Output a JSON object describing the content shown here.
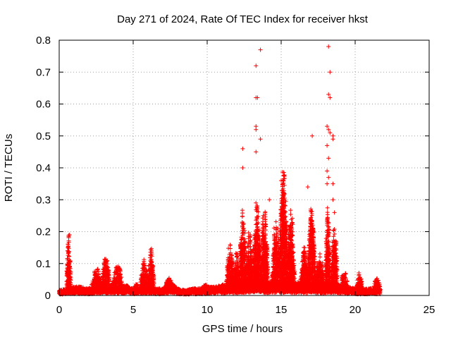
{
  "chart_data": {
    "type": "scatter",
    "title": "Day 271 of 2024, Rate Of TEC Index for receiver hkst",
    "xlabel": "GPS time / hours",
    "ylabel": "ROTI / TECUs",
    "xlim": [
      0,
      25
    ],
    "ylim": [
      0,
      0.8
    ],
    "x_ticks": [
      0,
      5,
      10,
      15,
      20,
      25
    ],
    "y_ticks": [
      0,
      0.1,
      0.2,
      0.3,
      0.4,
      0.5,
      0.6,
      0.7,
      0.8
    ],
    "x_tick_labels": [
      "0",
      "5",
      "10",
      "15",
      "20",
      "25"
    ],
    "y_tick_labels": [
      "0",
      "0.1",
      "0.2",
      "0.3",
      "0.4",
      "0.5",
      "0.6",
      "0.7",
      "0.8"
    ],
    "grid": true,
    "marker": "+",
    "series": [
      {
        "color": "#ff0000",
        "x_range": [
          0,
          21.7
        ],
        "baseline": [
          [
            0.0,
            0.015
          ],
          [
            0.5,
            0.02
          ],
          [
            1.0,
            0.025
          ],
          [
            1.5,
            0.025
          ],
          [
            2.0,
            0.02
          ],
          [
            2.5,
            0.03
          ],
          [
            3.0,
            0.035
          ],
          [
            3.5,
            0.03
          ],
          [
            4.0,
            0.025
          ],
          [
            4.5,
            0.03
          ],
          [
            5.0,
            0.02
          ],
          [
            5.5,
            0.025
          ],
          [
            6.0,
            0.03
          ],
          [
            6.5,
            0.02
          ],
          [
            7.0,
            0.02
          ],
          [
            7.5,
            0.04
          ],
          [
            8.0,
            0.02
          ],
          [
            8.5,
            0.015
          ],
          [
            9.0,
            0.02
          ],
          [
            9.5,
            0.02
          ],
          [
            10.0,
            0.025
          ],
          [
            10.5,
            0.025
          ],
          [
            11.0,
            0.03
          ],
          [
            11.5,
            0.04
          ],
          [
            12.0,
            0.035
          ],
          [
            12.5,
            0.04
          ],
          [
            13.0,
            0.05
          ],
          [
            13.5,
            0.045
          ],
          [
            14.0,
            0.04
          ],
          [
            14.5,
            0.04
          ],
          [
            15.0,
            0.045
          ],
          [
            15.5,
            0.035
          ],
          [
            16.0,
            0.04
          ],
          [
            16.5,
            0.035
          ],
          [
            17.0,
            0.04
          ],
          [
            17.5,
            0.035
          ],
          [
            18.0,
            0.035
          ],
          [
            18.5,
            0.04
          ],
          [
            19.0,
            0.03
          ],
          [
            19.5,
            0.025
          ],
          [
            20.0,
            0.02
          ],
          [
            20.5,
            0.02
          ],
          [
            21.0,
            0.02
          ],
          [
            21.7,
            0.02
          ]
        ],
        "bursts": [
          [
            0.5,
            0.8,
            0.19
          ],
          [
            2.2,
            2.9,
            0.08
          ],
          [
            2.9,
            3.4,
            0.12
          ],
          [
            3.6,
            4.3,
            0.09
          ],
          [
            5.0,
            5.4,
            0.04
          ],
          [
            5.5,
            6.0,
            0.11
          ],
          [
            6.0,
            6.4,
            0.15
          ],
          [
            7.2,
            7.7,
            0.06
          ],
          [
            9.6,
            10.2,
            0.03
          ],
          [
            11.3,
            11.8,
            0.18
          ],
          [
            11.8,
            12.2,
            0.14
          ],
          [
            12.2,
            12.6,
            0.28
          ],
          [
            12.6,
            13.1,
            0.2
          ],
          [
            13.1,
            13.6,
            0.32
          ],
          [
            13.6,
            14.1,
            0.27
          ],
          [
            14.4,
            14.9,
            0.25
          ],
          [
            14.9,
            15.4,
            0.4
          ],
          [
            15.4,
            15.9,
            0.27
          ],
          [
            16.3,
            16.8,
            0.15
          ],
          [
            16.8,
            17.3,
            0.28
          ],
          [
            17.3,
            17.9,
            0.13
          ],
          [
            18.0,
            18.3,
            0.3
          ],
          [
            18.4,
            18.8,
            0.23
          ],
          [
            19.0,
            19.5,
            0.07
          ],
          [
            20.1,
            20.5,
            0.07
          ],
          [
            21.2,
            21.7,
            0.05
          ]
        ],
        "outliers": [
          [
            0.7,
            0.19
          ],
          [
            12.4,
            0.46
          ],
          [
            12.4,
            0.4
          ],
          [
            13.3,
            0.72
          ],
          [
            13.3,
            0.62
          ],
          [
            13.4,
            0.62
          ],
          [
            13.3,
            0.53
          ],
          [
            13.3,
            0.52
          ],
          [
            13.3,
            0.45
          ],
          [
            13.6,
            0.77
          ],
          [
            13.6,
            0.49
          ],
          [
            14.2,
            0.3
          ],
          [
            15.0,
            0.36
          ],
          [
            16.8,
            0.34
          ],
          [
            17.1,
            0.5
          ],
          [
            18.2,
            0.78
          ],
          [
            18.3,
            0.7
          ],
          [
            18.2,
            0.63
          ],
          [
            18.3,
            0.62
          ],
          [
            18.1,
            0.53
          ],
          [
            18.2,
            0.52
          ],
          [
            18.3,
            0.51
          ],
          [
            18.5,
            0.5
          ],
          [
            18.5,
            0.49
          ],
          [
            18.1,
            0.47
          ],
          [
            18.2,
            0.43
          ],
          [
            18.1,
            0.39
          ],
          [
            18.2,
            0.37
          ],
          [
            18.1,
            0.35
          ],
          [
            18.5,
            0.35
          ],
          [
            18.5,
            0.3
          ],
          [
            18.6,
            0.26
          ]
        ]
      }
    ]
  }
}
